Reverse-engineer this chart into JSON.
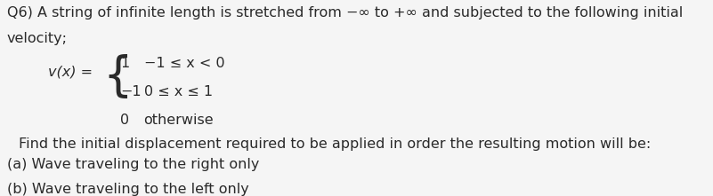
{
  "background_color": "#f5f5f5",
  "text_color": "#2a2a2a",
  "title_line1": "Q6) A string of infinite length is stretched from −∞ to +∞ and subjected to the following initial",
  "title_line2": "velocity;",
  "v_label": "v(x) =",
  "brace_cases": [
    {
      "value": "1",
      "condition": "−1 ≤ x < 0"
    },
    {
      "value": "−1",
      "condition": "0 ≤ x ≤ 1"
    },
    {
      "value": "0",
      "condition": "otherwise"
    }
  ],
  "find_text": "Find the initial displacement required to be applied in order the resulting motion will be:",
  "part_a": "(a) Wave traveling to the right only",
  "part_b": "(b) Wave traveling to the left only",
  "fontsize_main": 11.5,
  "fontsize_cases": 11.5
}
